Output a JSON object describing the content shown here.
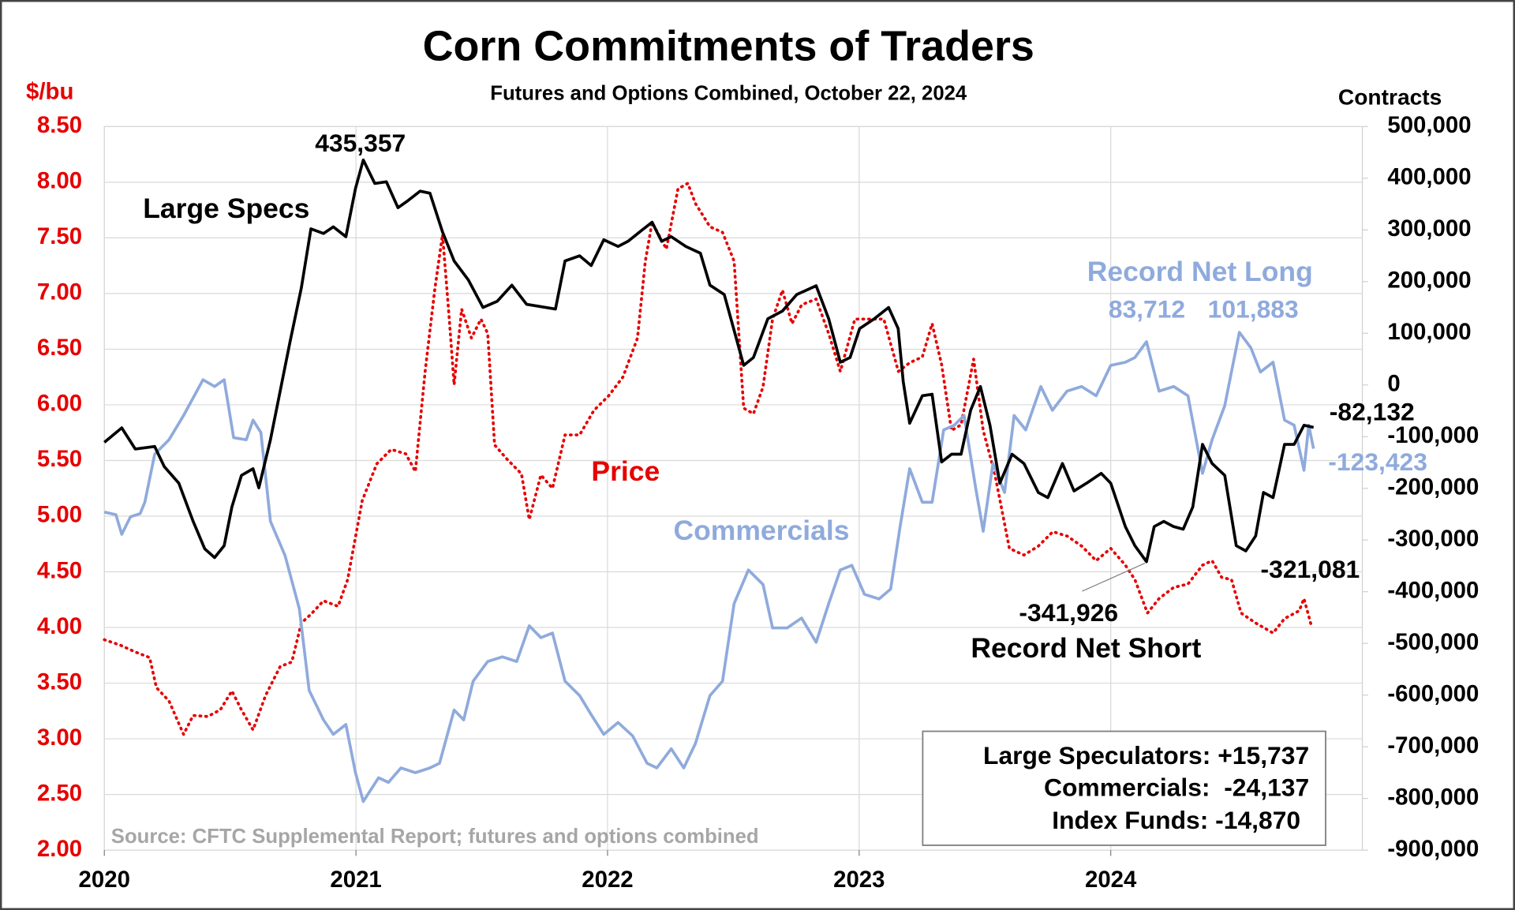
{
  "chart_data": {
    "type": "line",
    "title": "Corn Commitments of Traders",
    "subtitle": "Futures and Options Combined, October 22, 2024",
    "y_label": "$/bu",
    "y2_label": "Contracts",
    "source": "Source: CFTC Supplemental Report; futures and options combined",
    "xlim": [
      2020,
      2025
    ],
    "xticks": [
      2020,
      2021,
      2022,
      2023,
      2024
    ],
    "ylim": [
      2,
      8.5
    ],
    "yticks": [
      {
        "value": 2,
        "label": "2.00"
      },
      {
        "value": 2.5,
        "label": "2.50"
      },
      {
        "value": 3,
        "label": "3.00"
      },
      {
        "value": 3.5,
        "label": "3.50"
      },
      {
        "value": 4,
        "label": "4.00"
      },
      {
        "value": 4.5,
        "label": "4.50"
      },
      {
        "value": 5,
        "label": "5.00"
      },
      {
        "value": 5.5,
        "label": "5.50"
      },
      {
        "value": 6,
        "label": "6.00"
      },
      {
        "value": 6.5,
        "label": "6.50"
      },
      {
        "value": 7,
        "label": "7.00"
      },
      {
        "value": 7.5,
        "label": "7.50"
      },
      {
        "value": 8,
        "label": "8.00"
      },
      {
        "value": 8.5,
        "label": "8.50"
      }
    ],
    "y2lim": [
      -900000,
      500000
    ],
    "y2ticks": [
      {
        "value": -900000,
        "label": "-900,000"
      },
      {
        "value": -800000,
        "label": "-800,000"
      },
      {
        "value": -700000,
        "label": "-700,000"
      },
      {
        "value": -600000,
        "label": "-600,000"
      },
      {
        "value": -500000,
        "label": "-500,000"
      },
      {
        "value": -400000,
        "label": "-400,000"
      },
      {
        "value": -300000,
        "label": "-300,000"
      },
      {
        "value": -200000,
        "label": "-200,000"
      },
      {
        "value": -100000,
        "label": "-100,000"
      },
      0,
      {
        "value": 100000,
        "label": "100,000"
      },
      {
        "value": 200000,
        "label": "200,000"
      },
      {
        "value": 300000,
        "label": "300,000"
      },
      {
        "value": 400000,
        "label": "400,000"
      },
      {
        "value": 500000,
        "label": "500,000"
      }
    ],
    "grid": true,
    "y_color": "#e60000",
    "series": [
      {
        "name": "Large Specs",
        "color": "#000000",
        "axis": "y2",
        "line_style": "solid",
        "x": [
          2020.0,
          2020.069,
          2020.123,
          2020.2,
          2020.238,
          2020.296,
          2020.353,
          2020.399,
          2020.438,
          2020.476,
          2020.507,
          2020.545,
          2020.591,
          2020.614,
          2020.66,
          2020.737,
          2020.783,
          2020.821,
          2020.871,
          2020.91,
          2020.96,
          2020.998,
          2021.029,
          2021.075,
          2021.121,
          2021.167,
          2021.205,
          2021.255,
          2021.294,
          2021.344,
          2021.39,
          2021.447,
          2021.505,
          2021.562,
          2021.62,
          2021.678,
          2021.793,
          2021.831,
          2021.889,
          2021.935,
          2021.985,
          2022.042,
          2022.081,
          2022.138,
          2022.177,
          2022.215,
          2022.253,
          2022.311,
          2022.369,
          2022.407,
          2022.464,
          2022.541,
          2022.58,
          2022.637,
          2022.695,
          2022.752,
          2022.829,
          2022.879,
          2022.925,
          2022.964,
          2023.002,
          2023.06,
          2023.117,
          2023.155,
          2023.175,
          2023.201,
          2023.251,
          2023.29,
          2023.328,
          2023.367,
          2023.405,
          2023.443,
          2023.482,
          2023.52,
          2023.559,
          2023.608,
          2023.655,
          2023.712,
          2023.75,
          2023.808,
          2023.854,
          2023.904,
          2023.962,
          2024.0,
          2024.058,
          2024.096,
          2024.142,
          2024.173,
          2024.211,
          2024.25,
          2024.288,
          2024.326,
          2024.365,
          2024.403,
          2024.453,
          2024.499,
          2024.537,
          2024.576,
          2024.607,
          2024.645,
          2024.691,
          2024.729,
          2024.768,
          2024.806
        ],
        "values": [
          -111000,
          -83000,
          -124000,
          -119000,
          -158000,
          -190000,
          -264000,
          -317000,
          -334000,
          -311000,
          -236000,
          -175000,
          -162000,
          -199000,
          -106000,
          81000,
          188000,
          302000,
          293000,
          306000,
          287000,
          380000,
          435357,
          390000,
          393000,
          343000,
          356000,
          375000,
          371000,
          296000,
          240000,
          203000,
          150000,
          162000,
          193000,
          156000,
          147000,
          240000,
          250000,
          231000,
          281000,
          268000,
          278000,
          300000,
          315000,
          278000,
          287000,
          268000,
          255000,
          193000,
          175000,
          38000,
          53000,
          128000,
          143000,
          175000,
          192000,
          128000,
          44000,
          53000,
          109000,
          128000,
          150000,
          109000,
          7000,
          -74000,
          -21000,
          -18000,
          -149000,
          -134000,
          -134000,
          -49000,
          -3000,
          -78000,
          -190000,
          -134000,
          -152000,
          -208000,
          -218000,
          -152000,
          -205000,
          -190000,
          -171000,
          -190000,
          -274000,
          -311000,
          -341926,
          -274000,
          -264000,
          -274000,
          -279000,
          -236000,
          -115000,
          -152000,
          -175000,
          -311000,
          -321081,
          -292000,
          -208000,
          -218000,
          -115000,
          -115000,
          -78000,
          -82132
        ],
        "value_labels": [
          null,
          null,
          null,
          null,
          null,
          null,
          null,
          null,
          null,
          null,
          null,
          null,
          null,
          null,
          null,
          null,
          null,
          null,
          null,
          null,
          null,
          null,
          "435,357",
          null,
          null,
          null,
          null,
          null,
          null,
          null,
          null,
          null,
          null,
          null,
          null,
          null,
          null,
          null,
          null,
          null,
          null,
          null,
          null,
          null,
          null,
          null,
          null,
          null,
          null,
          null,
          null,
          null,
          null,
          null,
          null,
          null,
          null,
          null,
          null,
          null,
          null,
          null,
          null,
          null,
          null,
          null,
          null,
          null,
          null,
          null,
          null,
          null,
          null,
          null,
          null,
          null,
          null,
          null,
          null,
          null,
          null,
          null,
          null,
          null,
          null,
          null,
          "-341,926",
          null,
          null,
          null,
          null,
          null,
          null,
          null,
          null,
          null,
          "-321,081",
          null,
          null,
          null,
          null,
          null,
          null,
          "-82,132"
        ]
      },
      {
        "name": "Commercials",
        "color": "#8faadc",
        "axis": "y2",
        "line_style": "solid",
        "x": [
          2020.0,
          2020.046,
          2020.069,
          2020.104,
          2020.142,
          2020.161,
          2020.2,
          2020.257,
          2020.315,
          2020.392,
          2020.438,
          2020.476,
          2020.514,
          2020.564,
          2020.591,
          2020.622,
          2020.66,
          2020.718,
          2020.775,
          2020.814,
          2020.871,
          2020.91,
          2020.96,
          2020.998,
          2021.029,
          2021.09,
          2021.129,
          2021.179,
          2021.236,
          2021.294,
          2021.332,
          2021.39,
          2021.428,
          2021.466,
          2021.524,
          2021.582,
          2021.639,
          2021.689,
          2021.735,
          2021.781,
          2021.831,
          2021.889,
          2021.935,
          2021.985,
          2022.042,
          2022.1,
          2022.157,
          2022.196,
          2022.253,
          2022.303,
          2022.349,
          2022.407,
          2022.457,
          2022.503,
          2022.56,
          2022.618,
          2022.656,
          2022.714,
          2022.771,
          2022.829,
          2022.879,
          2022.925,
          2022.971,
          2023.021,
          2023.079,
          2023.125,
          2023.163,
          2023.201,
          2023.251,
          2023.29,
          2023.336,
          2023.378,
          2023.417,
          2023.463,
          2023.493,
          2023.532,
          2023.578,
          2023.616,
          2023.662,
          2023.722,
          2023.768,
          2023.826,
          2023.884,
          2023.942,
          2024.0,
          2024.058,
          2024.096,
          2024.142,
          2024.192,
          2024.25,
          2024.307,
          2024.365,
          2024.403,
          2024.453,
          2024.511,
          2024.557,
          2024.595,
          2024.645,
          2024.691,
          2024.729,
          2024.768,
          2024.787,
          2024.806
        ],
        "values": [
          -246000,
          -251000,
          -289000,
          -255000,
          -249000,
          -227000,
          -134000,
          -106000,
          -59000,
          10000,
          -3000,
          10000,
          -102000,
          -106000,
          -68000,
          -92000,
          -264000,
          -330000,
          -433000,
          -591000,
          -648000,
          -676000,
          -657000,
          -750000,
          -806000,
          -760000,
          -769000,
          -741000,
          -750000,
          -741000,
          -732000,
          -629000,
          -648000,
          -573000,
          -535000,
          -526000,
          -535000,
          -466000,
          -489000,
          -480000,
          -573000,
          -601000,
          -638000,
          -676000,
          -653000,
          -679000,
          -732000,
          -741000,
          -704000,
          -741000,
          -694000,
          -601000,
          -573000,
          -423000,
          -358000,
          -386000,
          -470000,
          -470000,
          -451000,
          -498000,
          -423000,
          -358000,
          -349000,
          -405000,
          -414000,
          -395000,
          -274000,
          -162000,
          -227000,
          -227000,
          -87000,
          -78000,
          -59000,
          -199000,
          -283000,
          -152000,
          -208000,
          -59000,
          -87000,
          -3000,
          -49000,
          -12000,
          -3000,
          -21000,
          38000,
          44000,
          53000,
          83712,
          -12000,
          -3000,
          -21000,
          -171000,
          -106000,
          -40000,
          101883,
          72000,
          25000,
          44000,
          -68000,
          -78000,
          -165000,
          -78000,
          -123423
        ],
        "value_labels": [
          null,
          null,
          null,
          null,
          null,
          null,
          null,
          null,
          null,
          null,
          null,
          null,
          null,
          null,
          null,
          null,
          null,
          null,
          null,
          null,
          null,
          null,
          null,
          null,
          null,
          null,
          null,
          null,
          null,
          null,
          null,
          null,
          null,
          null,
          null,
          null,
          null,
          null,
          null,
          null,
          null,
          null,
          null,
          null,
          null,
          null,
          null,
          null,
          null,
          null,
          null,
          null,
          null,
          null,
          null,
          null,
          null,
          null,
          null,
          null,
          null,
          null,
          null,
          null,
          null,
          null,
          null,
          null,
          null,
          null,
          null,
          null,
          null,
          null,
          null,
          null,
          null,
          null,
          null,
          null,
          null,
          null,
          null,
          null,
          null,
          null,
          null,
          "83,712",
          null,
          null,
          null,
          null,
          null,
          null,
          "101,883",
          null,
          null,
          null,
          null,
          null,
          null,
          null,
          "-123,423"
        ]
      },
      {
        "name": "Price",
        "color": "#e60000",
        "axis": "y",
        "line_style": "dotted",
        "x": [
          2020.0,
          2020.065,
          2020.123,
          2020.18,
          2020.207,
          2020.257,
          2020.315,
          2020.353,
          2020.411,
          2020.461,
          2020.507,
          2020.545,
          2020.591,
          2020.641,
          2020.699,
          2020.745,
          2020.783,
          2020.822,
          2020.871,
          2020.929,
          2020.967,
          2021.025,
          2021.083,
          2021.14,
          2021.198,
          2021.236,
          2021.275,
          2021.313,
          2021.344,
          2021.371,
          2021.39,
          2021.42,
          2021.459,
          2021.497,
          2021.524,
          2021.551,
          2021.601,
          2021.658,
          2021.689,
          2021.735,
          2021.781,
          2021.831,
          2021.889,
          2021.946,
          2022.004,
          2022.061,
          2022.119,
          2022.15,
          2022.177,
          2022.234,
          2022.28,
          2022.319,
          2022.349,
          2022.407,
          2022.457,
          2022.503,
          2022.541,
          2022.58,
          2022.618,
          2022.656,
          2022.695,
          2022.733,
          2022.772,
          2022.829,
          2022.879,
          2022.925,
          2022.983,
          2023.04,
          2023.098,
          2023.156,
          2023.202,
          2023.251,
          2023.29,
          2023.328,
          2023.367,
          2023.405,
          2023.455,
          2023.493,
          2023.539,
          2023.597,
          2023.655,
          2023.712,
          2023.77,
          2023.827,
          2023.885,
          2023.942,
          2024.0,
          2024.058,
          2024.096,
          2024.146,
          2024.192,
          2024.25,
          2024.307,
          2024.365,
          2024.403,
          2024.441,
          2024.48,
          2024.518,
          2024.576,
          2024.645,
          2024.691,
          2024.749,
          2024.768,
          2024.798
        ],
        "values": [
          3.89,
          3.84,
          3.78,
          3.73,
          3.46,
          3.34,
          3.04,
          3.21,
          3.2,
          3.26,
          3.43,
          3.26,
          3.08,
          3.39,
          3.65,
          3.69,
          4.04,
          4.12,
          4.24,
          4.19,
          4.43,
          5.14,
          5.47,
          5.6,
          5.56,
          5.4,
          6.3,
          7.03,
          7.53,
          6.77,
          6.18,
          6.86,
          6.6,
          6.77,
          6.64,
          5.64,
          5.51,
          5.38,
          4.97,
          5.37,
          5.25,
          5.73,
          5.73,
          5.95,
          6.08,
          6.25,
          6.6,
          7.29,
          7.64,
          7.4,
          7.94,
          7.99,
          7.81,
          7.6,
          7.55,
          7.29,
          5.97,
          5.92,
          6.16,
          6.77,
          7.03,
          6.73,
          6.9,
          6.95,
          6.64,
          6.3,
          6.77,
          6.77,
          6.77,
          6.3,
          6.38,
          6.43,
          6.73,
          6.36,
          5.77,
          5.82,
          6.41,
          5.77,
          5.38,
          4.71,
          4.65,
          4.73,
          4.86,
          4.82,
          4.73,
          4.6,
          4.71,
          4.56,
          4.43,
          4.13,
          4.26,
          4.36,
          4.39,
          4.56,
          4.6,
          4.45,
          4.43,
          4.13,
          4.04,
          3.95,
          4.08,
          4.15,
          4.26,
          4.01
        ]
      }
    ],
    "annotations": [
      {
        "text": "Record Net Long",
        "color": "#8faadc"
      },
      {
        "text": "Record Net Short",
        "color": "#000000"
      }
    ],
    "summary_box": [
      "Large Speculators: +15,737",
      "Commercials:  -24,137",
      "Index Funds: -14,870"
    ]
  }
}
